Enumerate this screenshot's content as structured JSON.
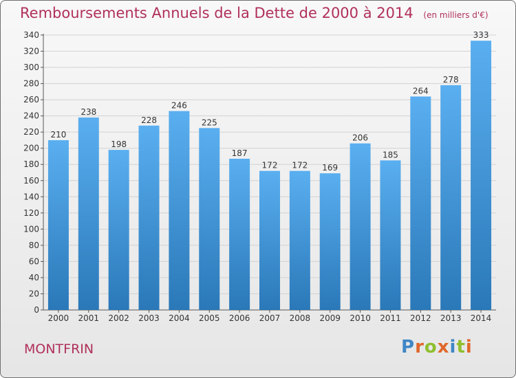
{
  "header": {
    "title": "Remboursements Annuels de la Dette de 2000 à 2014",
    "unit": "(en milliers d'€)"
  },
  "footer": {
    "commune": "MONTFRIN",
    "logo_text": "Proxiti"
  },
  "colors": {
    "title": "#b0305a",
    "bar_top": "#5aaff0",
    "bar_bottom": "#2a78b8",
    "logo_letters": [
      "#3f86c7",
      "#e0682a",
      "#8fbf2e",
      "#e0682a",
      "#3f86c7",
      "#8fbf2e",
      "#e0682a"
    ]
  },
  "chart_data": {
    "type": "bar",
    "title": "Remboursements Annuels de la Dette de 2000 à 2014",
    "xlabel": "",
    "ylabel": "",
    "categories": [
      "2000",
      "2001",
      "2002",
      "2003",
      "2004",
      "2005",
      "2006",
      "2007",
      "2008",
      "2009",
      "2010",
      "2011",
      "2012",
      "2013",
      "2014"
    ],
    "values": [
      210,
      238,
      198,
      228,
      246,
      225,
      187,
      172,
      172,
      169,
      206,
      185,
      264,
      278,
      333
    ],
    "ylim": [
      0,
      340
    ],
    "ytick_step": 20,
    "grid": true
  }
}
